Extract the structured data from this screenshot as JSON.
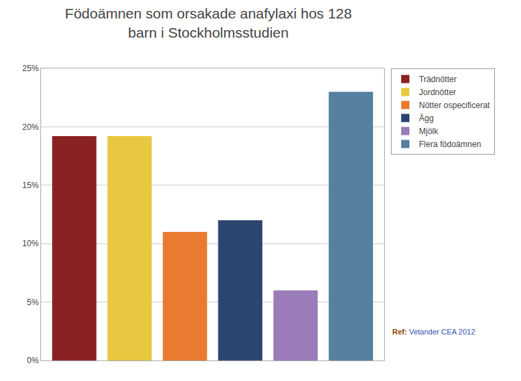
{
  "chart_data": {
    "type": "bar",
    "title": "Födoämnen som orsakade anafylaxi hos 128\nbarn i Stockholmsstudien",
    "categories": [
      "Trädnötter",
      "Jordnötter",
      "Nötter ospecificerat",
      "Ägg",
      "Mjölk",
      "Flera födoämnen"
    ],
    "values": [
      19.2,
      19.2,
      11.0,
      12.0,
      6.0,
      23.0
    ],
    "colors": [
      "#8B2222",
      "#E8C840",
      "#E87B30",
      "#2B4570",
      "#9B7BB8",
      "#5580A0"
    ],
    "ylim": [
      0,
      25
    ],
    "yticks": [
      {
        "value": 0,
        "label": "0%"
      },
      {
        "value": 5,
        "label": "5%"
      },
      {
        "value": 10,
        "label": "10%"
      },
      {
        "value": 15,
        "label": "15%"
      },
      {
        "value": 20,
        "label": "20%"
      },
      {
        "value": 25,
        "label": "25%"
      }
    ],
    "grid": true,
    "legend": "upper right",
    "tick_labels": "y",
    "annotations": [
      {
        "text": "Ref:",
        "color": "#8B4000"
      },
      {
        "text": "Vetander CEA 2012",
        "color": "#3355AA"
      }
    ]
  }
}
